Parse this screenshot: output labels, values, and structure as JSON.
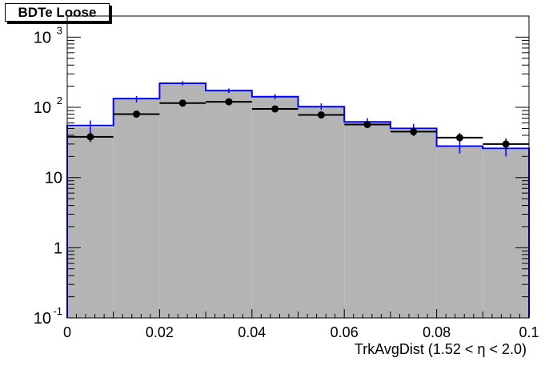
{
  "chart_data": {
    "type": "bar",
    "title": "BDTe Loose",
    "xlabel": "TrkAvgDist (1.52 <  η < 2.0)",
    "ylabel": "",
    "xlim": [
      0,
      0.1
    ],
    "ylim": [
      0.1,
      2000
    ],
    "yscale": "log",
    "grid": false,
    "x_ticks": [
      {
        "value": 0,
        "label": "0"
      },
      {
        "value": 0.02,
        "label": "0.02"
      },
      {
        "value": 0.04,
        "label": "0.04"
      },
      {
        "value": 0.06,
        "label": "0.06"
      },
      {
        "value": 0.08,
        "label": "0.08"
      },
      {
        "value": 0.1,
        "label": "0.1"
      }
    ],
    "y_ticks": [
      {
        "value": 0.1,
        "base": "10",
        "exp": "-1"
      },
      {
        "value": 1,
        "base": "1",
        "exp": ""
      },
      {
        "value": 10,
        "base": "10",
        "exp": ""
      },
      {
        "value": 100,
        "base": "10",
        "exp": "2"
      },
      {
        "value": 1000,
        "base": "10",
        "exp": "3"
      }
    ],
    "bin_edges": [
      0,
      0.01,
      0.02,
      0.03,
      0.04,
      0.05,
      0.06,
      0.07,
      0.08,
      0.09,
      0.1
    ],
    "series": [
      {
        "kind": "filled-histogram",
        "values": [
          52,
          130,
          215,
          170,
          140,
          105,
          60,
          48,
          27,
          25
        ],
        "fill": "#b4b4b4"
      },
      {
        "kind": "step-histogram",
        "values": [
          55,
          133,
          220,
          173,
          142,
          102,
          62,
          50,
          28,
          26
        ],
        "errors_low": [
          40,
          118,
          205,
          160,
          130,
          92,
          53,
          42,
          22,
          20
        ],
        "errors_high": [
          65,
          145,
          235,
          186,
          155,
          114,
          70,
          58,
          33,
          31
        ],
        "color": "#0000ff"
      },
      {
        "kind": "points",
        "values": [
          38,
          80,
          115,
          120,
          95,
          78,
          57,
          45,
          37,
          30
        ],
        "errors_low": [
          32,
          73,
          107,
          112,
          88,
          72,
          51,
          39,
          32,
          25
        ],
        "errors_high": [
          45,
          87,
          123,
          128,
          102,
          85,
          63,
          52,
          43,
          36
        ],
        "color": "#000000"
      }
    ]
  }
}
